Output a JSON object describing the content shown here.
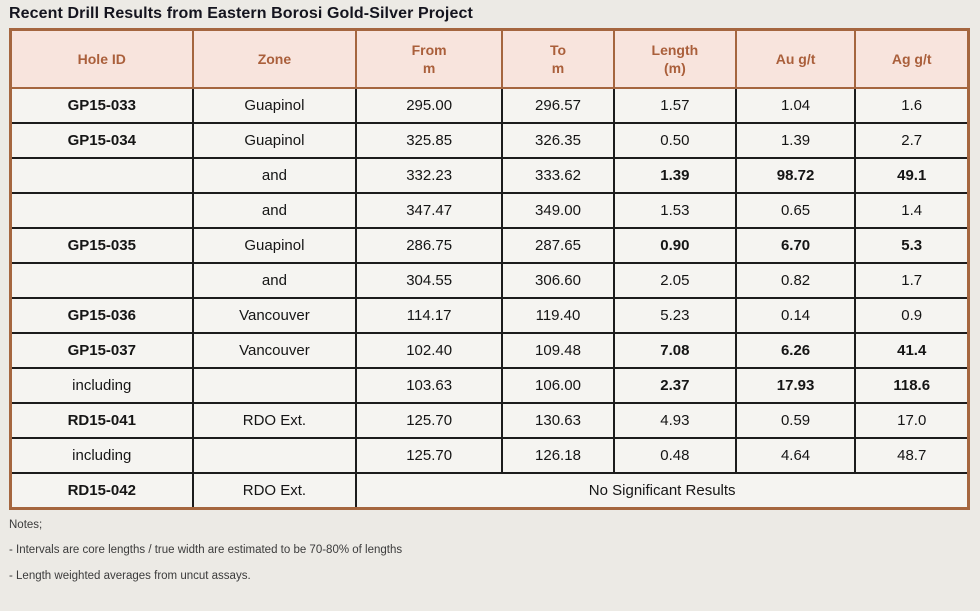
{
  "page": {
    "title": "Recent Drill Results from Eastern Borosi Gold-Silver Project"
  },
  "colors": {
    "page_bg": "#ECEAE5",
    "cell_bg": "#F5F4F1",
    "header_bg": "#F8E4DD",
    "header_text": "#AA5F3B",
    "outer_border_brown": "#A5663F",
    "inner_border_dark": "#1C1C1C",
    "title_text": "#14141E",
    "notes_text": "#3B3B3B"
  },
  "table": {
    "columns": [
      {
        "key": "hole-id",
        "label": "Hole ID",
        "sub": ""
      },
      {
        "key": "zone",
        "label": "Zone",
        "sub": ""
      },
      {
        "key": "from",
        "label": "From",
        "sub": "m"
      },
      {
        "key": "to",
        "label": "To",
        "sub": "m"
      },
      {
        "key": "length",
        "label": "Length",
        "sub": "(m)"
      },
      {
        "key": "au",
        "label": "Au g/t",
        "sub": ""
      },
      {
        "key": "ag",
        "label": "Ag g/t",
        "sub": ""
      }
    ],
    "rows": [
      {
        "hole_id": "GP15-033",
        "zone": "Guapinol",
        "from": "295.00",
        "to": "296.57",
        "length": "1.57",
        "au": "1.04",
        "ag": "1.6",
        "hole_bold": true,
        "vals_bold": false
      },
      {
        "hole_id": "GP15-034",
        "zone": "Guapinol",
        "from": "325.85",
        "to": "326.35",
        "length": "0.50",
        "au": "1.39",
        "ag": "2.7",
        "hole_bold": true,
        "vals_bold": false
      },
      {
        "hole_id": "",
        "zone": "and",
        "from": "332.23",
        "to": "333.62",
        "length": "1.39",
        "au": "98.72",
        "ag": "49.1",
        "hole_bold": false,
        "vals_bold": true
      },
      {
        "hole_id": "",
        "zone": "and",
        "from": "347.47",
        "to": "349.00",
        "length": "1.53",
        "au": "0.65",
        "ag": "1.4",
        "hole_bold": false,
        "vals_bold": false
      },
      {
        "hole_id": "GP15-035",
        "zone": "Guapinol",
        "from": "286.75",
        "to": "287.65",
        "length": "0.90",
        "au": "6.70",
        "ag": "5.3",
        "hole_bold": true,
        "vals_bold": true
      },
      {
        "hole_id": "",
        "zone": "and",
        "from": "304.55",
        "to": "306.60",
        "length": "2.05",
        "au": "0.82",
        "ag": "1.7",
        "hole_bold": false,
        "vals_bold": false
      },
      {
        "hole_id": "GP15-036",
        "zone": "Vancouver",
        "from": "114.17",
        "to": "119.40",
        "length": "5.23",
        "au": "0.14",
        "ag": "0.9",
        "hole_bold": true,
        "vals_bold": false
      },
      {
        "hole_id": "GP15-037",
        "zone": "Vancouver",
        "from": "102.40",
        "to": "109.48",
        "length": "7.08",
        "au": "6.26",
        "ag": "41.4",
        "hole_bold": true,
        "vals_bold": true
      },
      {
        "hole_id": "including",
        "zone": "",
        "from": "103.63",
        "to": "106.00",
        "length": "2.37",
        "au": "17.93",
        "ag": "118.6",
        "hole_bold": false,
        "vals_bold": true
      },
      {
        "hole_id": "RD15-041",
        "zone": "RDO Ext.",
        "from": "125.70",
        "to": "130.63",
        "length": "4.93",
        "au": "0.59",
        "ag": "17.0",
        "hole_bold": true,
        "vals_bold": false
      },
      {
        "hole_id": "including",
        "zone": "",
        "from": "125.70",
        "to": "126.18",
        "length": "0.48",
        "au": "4.64",
        "ag": "48.7",
        "hole_bold": false,
        "vals_bold": false
      },
      {
        "hole_id": "RD15-042",
        "zone": "RDO Ext.",
        "span_message": "No Significant Results",
        "hole_bold": true,
        "vals_bold": false
      }
    ]
  },
  "notes": {
    "heading": "Notes;",
    "items": [
      "- Intervals are core lengths / true width are estimated to be 70-80% of lengths",
      "- Length weighted averages from uncut assays."
    ]
  }
}
